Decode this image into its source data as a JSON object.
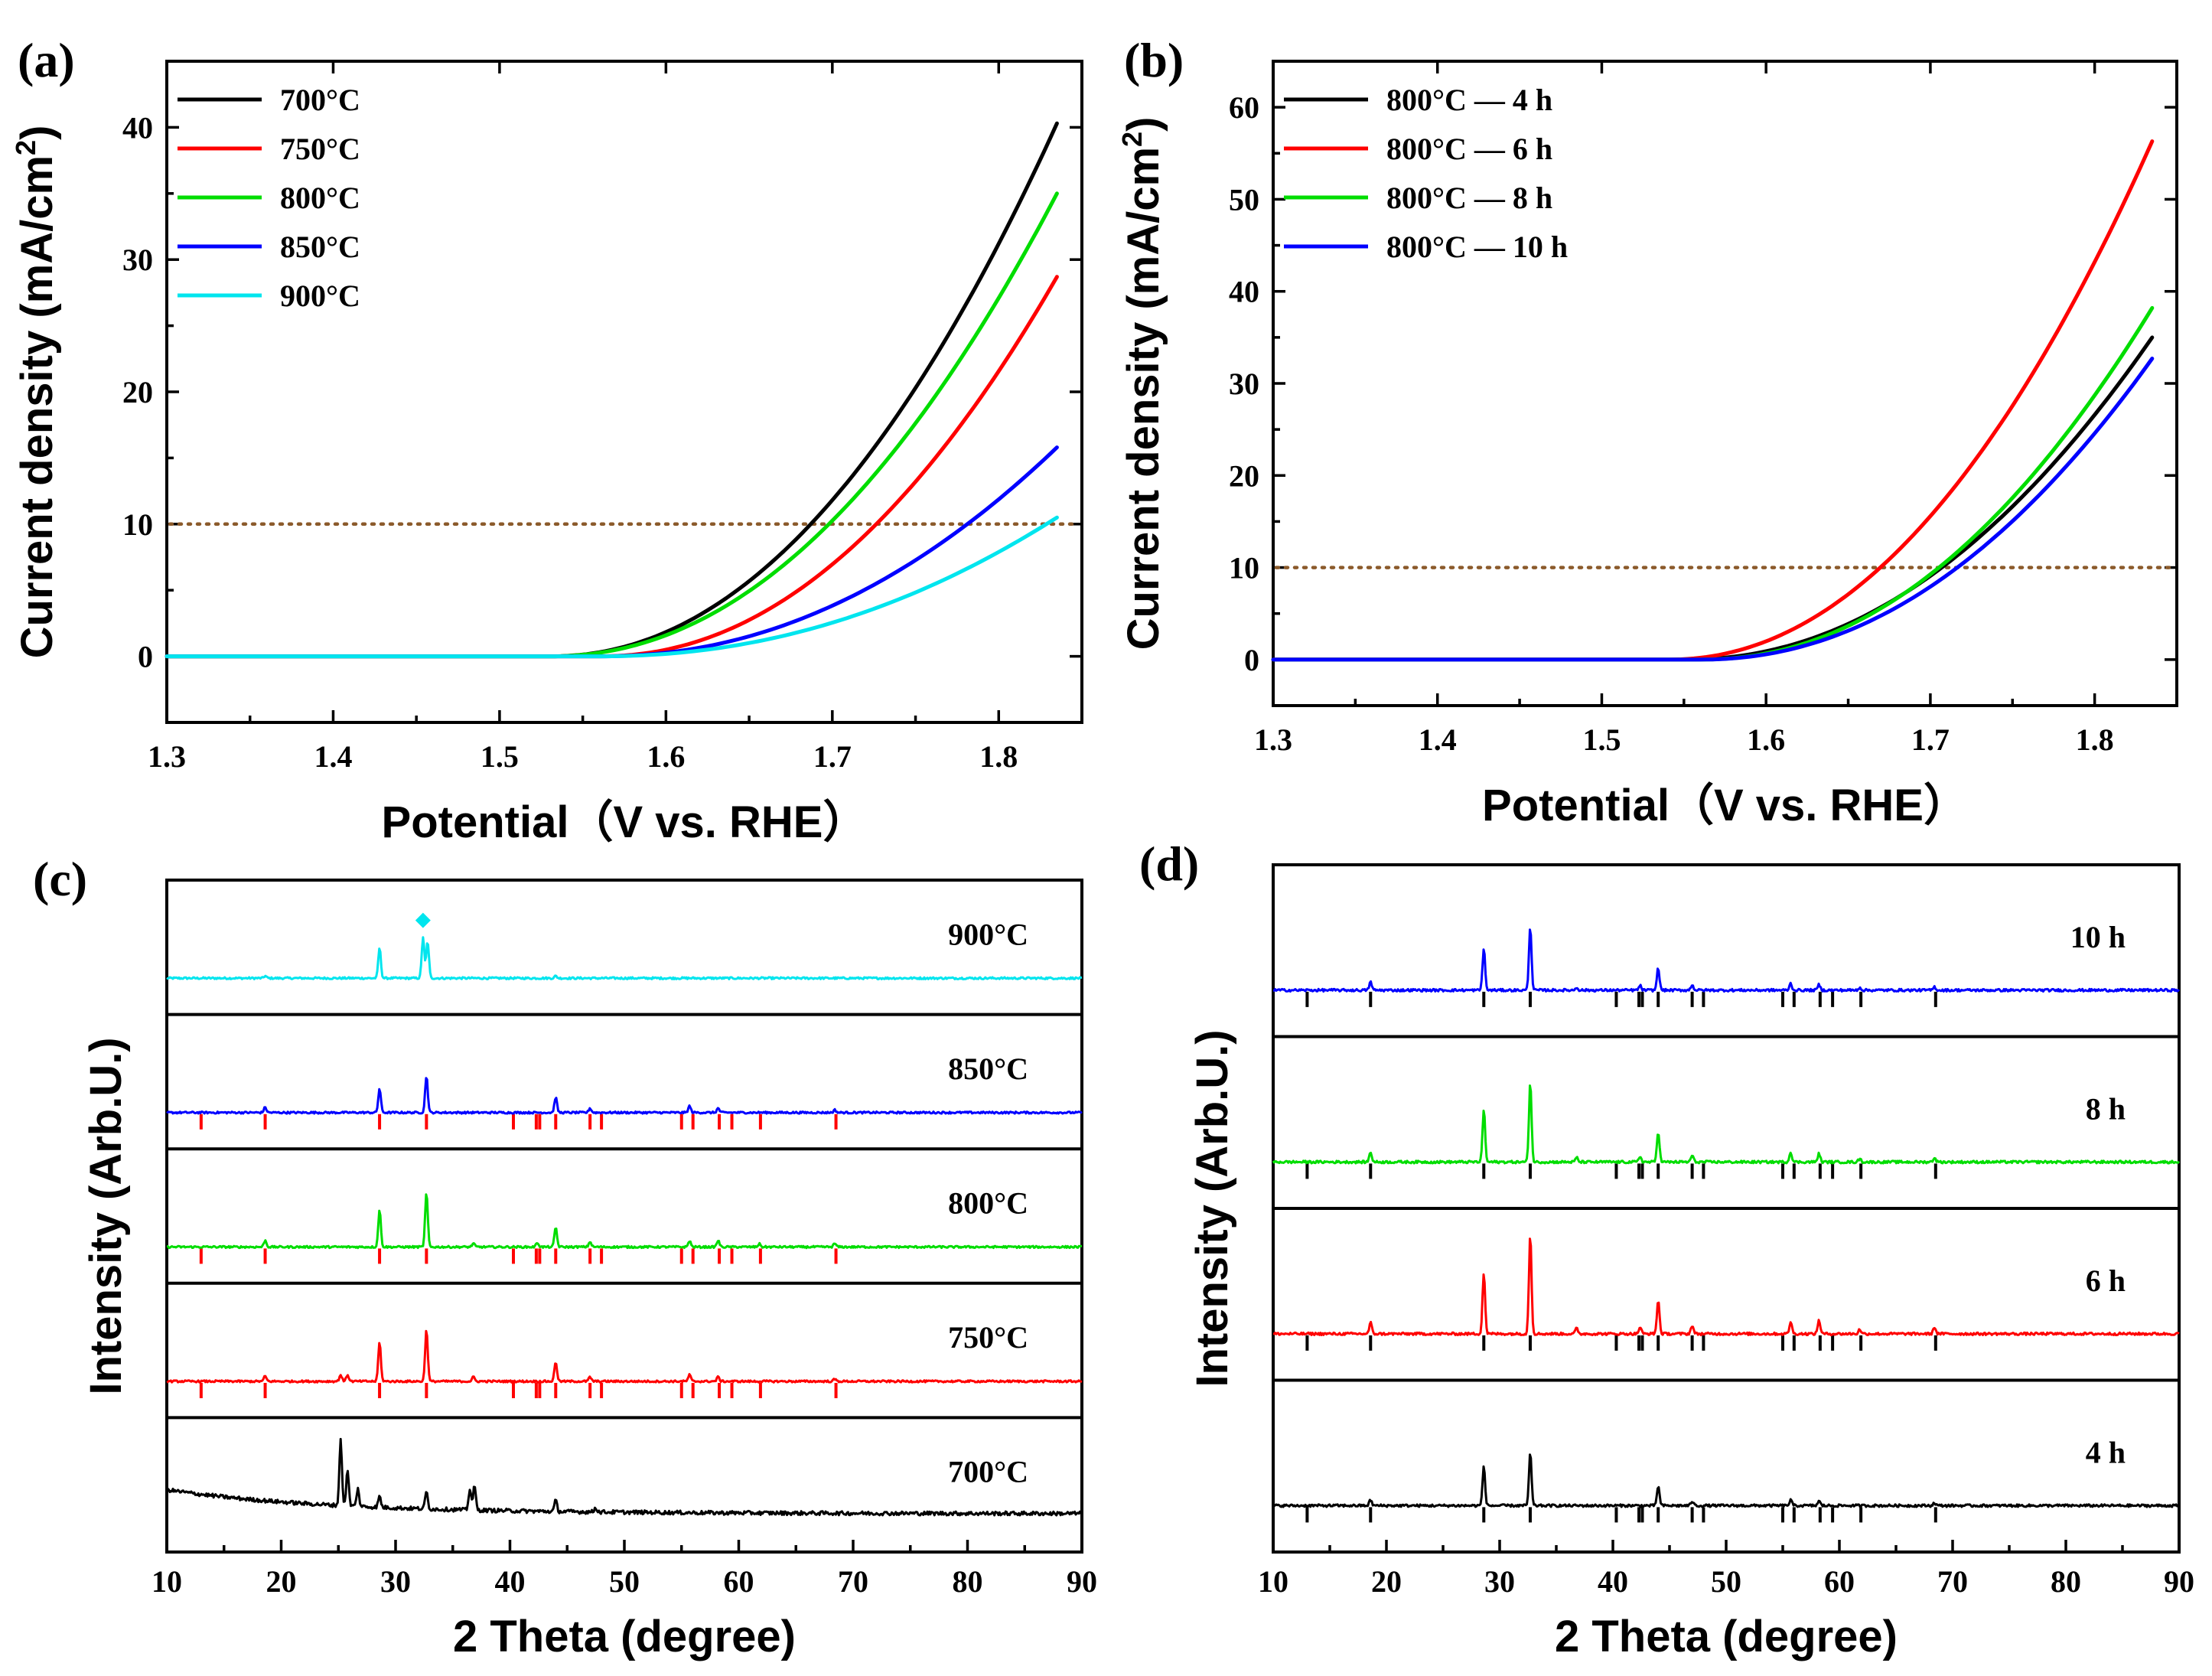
{
  "chart_data": [
    {
      "id": "a",
      "type": "line",
      "panel_label": "(a)",
      "xlabel": "Potential（V vs. RHE）",
      "ylabel": "Current density (mA/cm",
      "ylabel_sup": "2",
      "ylabel_end": ")",
      "xlim": [
        1.3,
        1.85
      ],
      "ylim": [
        -5,
        45
      ],
      "xticks": [
        1.3,
        1.4,
        1.5,
        1.6,
        1.7,
        1.8
      ],
      "xtick_labels": [
        "1.3",
        "1.4",
        "1.5",
        "1.6",
        "1.7",
        "1.8"
      ],
      "yticks": [
        0,
        10,
        20,
        30,
        40
      ],
      "ytick_labels": [
        "0",
        "10",
        "20",
        "30",
        "40"
      ],
      "reference_line": {
        "y": 10,
        "color": "#8B5A2B"
      },
      "legend_position": "top-left",
      "series": [
        {
          "name": "700°C",
          "color": "#000000",
          "onset": 1.53,
          "end_x": 1.835,
          "end_y": 40.3
        },
        {
          "name": "750°C",
          "color": "#ff0000",
          "onset": 1.56,
          "end_x": 1.835,
          "end_y": 28.7
        },
        {
          "name": "800°C",
          "color": "#00dd00",
          "onset": 1.53,
          "end_x": 1.835,
          "end_y": 35.0
        },
        {
          "name": "850°C",
          "color": "#0000ff",
          "onset": 1.56,
          "end_x": 1.835,
          "end_y": 15.8
        },
        {
          "name": "900°C",
          "color": "#00e5ee",
          "onset": 1.56,
          "end_x": 1.835,
          "end_y": 10.5
        }
      ]
    },
    {
      "id": "b",
      "type": "line",
      "panel_label": "(b)",
      "xlabel": "Potential（V vs. RHE）",
      "ylabel": "Current density (mA/cm",
      "ylabel_sup": "2",
      "ylabel_end": ")",
      "xlim": [
        1.3,
        1.85
      ],
      "ylim": [
        -5,
        65
      ],
      "xticks": [
        1.3,
        1.4,
        1.5,
        1.6,
        1.7,
        1.8
      ],
      "xtick_labels": [
        "1.3",
        "1.4",
        "1.5",
        "1.6",
        "1.7",
        "1.8"
      ],
      "yticks": [
        0,
        10,
        20,
        30,
        40,
        50,
        60
      ],
      "ytick_labels": [
        "0",
        "10",
        "20",
        "30",
        "40",
        "50",
        "60"
      ],
      "reference_line": {
        "y": 10,
        "color": "#8B5A2B"
      },
      "legend_position": "top-left",
      "series": [
        {
          "name": "800°C — 4 h",
          "color": "#000000",
          "onset": 1.55,
          "end_x": 1.835,
          "end_y": 35.0
        },
        {
          "name": "800°C — 6 h",
          "color": "#ff0000",
          "onset": 1.54,
          "end_x": 1.835,
          "end_y": 56.3
        },
        {
          "name": "800°C — 8 h",
          "color": "#00dd00",
          "onset": 1.56,
          "end_x": 1.835,
          "end_y": 38.2
        },
        {
          "name": "800°C — 10 h",
          "color": "#0000ff",
          "onset": 1.56,
          "end_x": 1.835,
          "end_y": 32.7
        }
      ]
    },
    {
      "id": "c",
      "type": "line",
      "panel_label": "(c)",
      "xlabel": "2 Theta (degree)",
      "ylabel": "Intensity (Arb.U.)",
      "xlim": [
        10,
        90
      ],
      "xticks": [
        10,
        20,
        30,
        40,
        50,
        60,
        70,
        80,
        90
      ],
      "xtick_labels": [
        "10",
        "20",
        "30",
        "40",
        "50",
        "60",
        "70",
        "80",
        "90"
      ],
      "reference_ticks": [
        13.0,
        18.6,
        28.6,
        32.7,
        40.3,
        42.3,
        42.6,
        44.0,
        47.0,
        48.0,
        55.0,
        56.0,
        58.3,
        59.4,
        61.9,
        68.5
      ],
      "reference_color": "#ff0000",
      "diamond_marker_x": 32.4,
      "traces": [
        {
          "name": "900°C",
          "color": "#00e5ee",
          "peaks": [
            [
              28.6,
              0.7
            ],
            [
              32.4,
              0.95
            ],
            [
              32.8,
              0.85
            ],
            [
              18.6,
              0.05
            ],
            [
              44.0,
              0.05
            ]
          ],
          "has_refs": false
        },
        {
          "name": "850°C",
          "color": "#0000ff",
          "peaks": [
            [
              18.6,
              0.12
            ],
            [
              28.6,
              0.55
            ],
            [
              32.7,
              0.85
            ],
            [
              44.0,
              0.35
            ],
            [
              47.0,
              0.1
            ],
            [
              55.7,
              0.15
            ],
            [
              58.2,
              0.1
            ],
            [
              68.4,
              0.06
            ]
          ],
          "has_refs": true
        },
        {
          "name": "800°C",
          "color": "#00dd00",
          "peaks": [
            [
              18.6,
              0.15
            ],
            [
              28.6,
              0.85
            ],
            [
              32.7,
              1.25
            ],
            [
              36.8,
              0.08
            ],
            [
              42.4,
              0.1
            ],
            [
              44.0,
              0.45
            ],
            [
              47.0,
              0.12
            ],
            [
              55.7,
              0.14
            ],
            [
              58.2,
              0.15
            ],
            [
              61.8,
              0.07
            ],
            [
              68.4,
              0.08
            ]
          ],
          "has_refs": true
        },
        {
          "name": "750°C",
          "color": "#ff0000",
          "peaks": [
            [
              18.6,
              0.12
            ],
            [
              25.2,
              0.15
            ],
            [
              25.8,
              0.15
            ],
            [
              28.6,
              0.9
            ],
            [
              32.7,
              1.2
            ],
            [
              36.8,
              0.1
            ],
            [
              44.0,
              0.45
            ],
            [
              47.0,
              0.1
            ],
            [
              55.7,
              0.15
            ],
            [
              58.2,
              0.1
            ],
            [
              68.4,
              0.05
            ]
          ],
          "has_refs": true
        },
        {
          "name": "700°C",
          "color": "#000000",
          "peaks": [
            [
              25.2,
              1.5
            ],
            [
              25.8,
              0.8
            ],
            [
              26.7,
              0.4
            ],
            [
              28.6,
              0.25
            ],
            [
              32.7,
              0.4
            ],
            [
              36.5,
              0.5
            ],
            [
              36.9,
              0.55
            ],
            [
              44.0,
              0.25
            ],
            [
              47.5,
              0.1
            ]
          ],
          "has_refs": false,
          "amorphous": true
        }
      ]
    },
    {
      "id": "d",
      "type": "line",
      "panel_label": "(d)",
      "xlabel": "2 Theta (degree)",
      "ylabel": "Intensity (Arb.U.)",
      "xlim": [
        10,
        90
      ],
      "xticks": [
        10,
        20,
        30,
        40,
        50,
        60,
        70,
        80,
        90
      ],
      "xtick_labels": [
        "10",
        "20",
        "30",
        "40",
        "50",
        "60",
        "70",
        "80",
        "90"
      ],
      "reference_ticks": [
        13.0,
        18.6,
        28.6,
        32.7,
        40.3,
        42.3,
        42.6,
        44.0,
        47.0,
        48.0,
        55.0,
        56.0,
        58.3,
        59.4,
        61.9,
        68.5
      ],
      "reference_color": "#000000",
      "traces": [
        {
          "name": "10 h",
          "color": "#0000ff",
          "peaks": [
            [
              18.6,
              0.15
            ],
            [
              28.6,
              0.75
            ],
            [
              32.7,
              1.15
            ],
            [
              36.8,
              0.05
            ],
            [
              42.4,
              0.08
            ],
            [
              44.0,
              0.4
            ],
            [
              47.0,
              0.1
            ],
            [
              55.7,
              0.12
            ],
            [
              58.2,
              0.1
            ],
            [
              61.8,
              0.05
            ],
            [
              68.4,
              0.06
            ]
          ],
          "has_refs": true
        },
        {
          "name": "8 h",
          "color": "#00dd00",
          "peaks": [
            [
              18.6,
              0.18
            ],
            [
              28.6,
              0.95
            ],
            [
              32.7,
              1.45
            ],
            [
              36.8,
              0.08
            ],
            [
              42.4,
              0.1
            ],
            [
              44.0,
              0.55
            ],
            [
              47.0,
              0.12
            ],
            [
              55.7,
              0.18
            ],
            [
              58.2,
              0.15
            ],
            [
              61.8,
              0.06
            ],
            [
              68.4,
              0.08
            ]
          ],
          "has_refs": true
        },
        {
          "name": "6 h",
          "color": "#ff0000",
          "peaks": [
            [
              18.6,
              0.2
            ],
            [
              28.6,
              1.1
            ],
            [
              32.7,
              1.8
            ],
            [
              36.8,
              0.1
            ],
            [
              42.4,
              0.12
            ],
            [
              44.0,
              0.6
            ],
            [
              47.0,
              0.15
            ],
            [
              55.7,
              0.22
            ],
            [
              58.2,
              0.25
            ],
            [
              61.8,
              0.08
            ],
            [
              68.4,
              0.12
            ]
          ],
          "has_refs": true
        },
        {
          "name": "4 h",
          "color": "#000000",
          "peaks": [
            [
              18.6,
              0.1
            ],
            [
              28.6,
              0.7
            ],
            [
              32.7,
              0.95
            ],
            [
              44.0,
              0.35
            ],
            [
              47.0,
              0.08
            ],
            [
              55.7,
              0.1
            ],
            [
              58.2,
              0.08
            ],
            [
              68.4,
              0.05
            ]
          ],
          "has_refs": true
        }
      ]
    }
  ]
}
